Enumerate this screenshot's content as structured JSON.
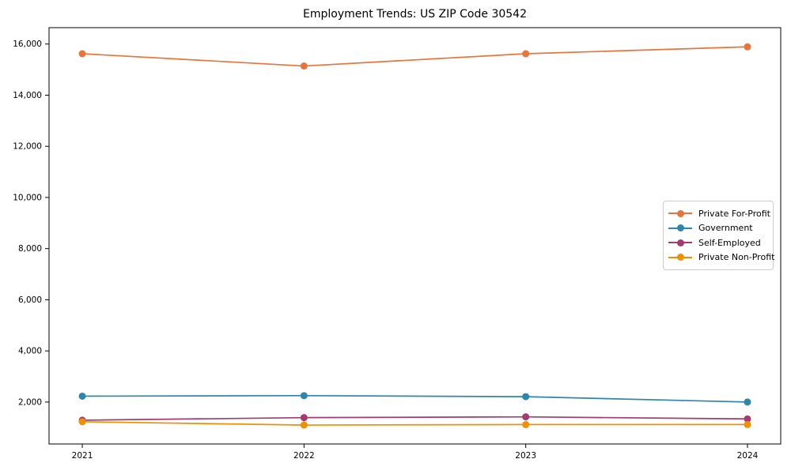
{
  "chart_data": {
    "type": "line",
    "title": "Employment Trends: US ZIP Code 30542",
    "xlabel": "",
    "ylabel": "",
    "x": [
      2021,
      2022,
      2023,
      2024
    ],
    "xtick_labels": [
      "2021",
      "2022",
      "2023",
      "2024"
    ],
    "yticks": [
      2000,
      4000,
      6000,
      8000,
      10000,
      12000,
      14000,
      16000
    ],
    "ytick_labels": [
      "2,000",
      "4,000",
      "6,000",
      "8,000",
      "10,000",
      "12,000",
      "14,000",
      "16,000"
    ],
    "xlim": [
      2020.85,
      2024.15
    ],
    "ylim": [
      360,
      16640
    ],
    "grid": false,
    "legend_position": "center right",
    "series": [
      {
        "name": "Private For-Profit",
        "color": "#E8743B",
        "values": [
          15620,
          15140,
          15620,
          15890
        ]
      },
      {
        "name": "Government",
        "color": "#2E86AB",
        "values": [
          2230,
          2250,
          2210,
          2000
        ]
      },
      {
        "name": "Self-Employed",
        "color": "#A23B72",
        "values": [
          1290,
          1390,
          1420,
          1340
        ]
      },
      {
        "name": "Private Non-Profit",
        "color": "#F18F01",
        "values": [
          1230,
          1100,
          1120,
          1120
        ]
      }
    ]
  }
}
